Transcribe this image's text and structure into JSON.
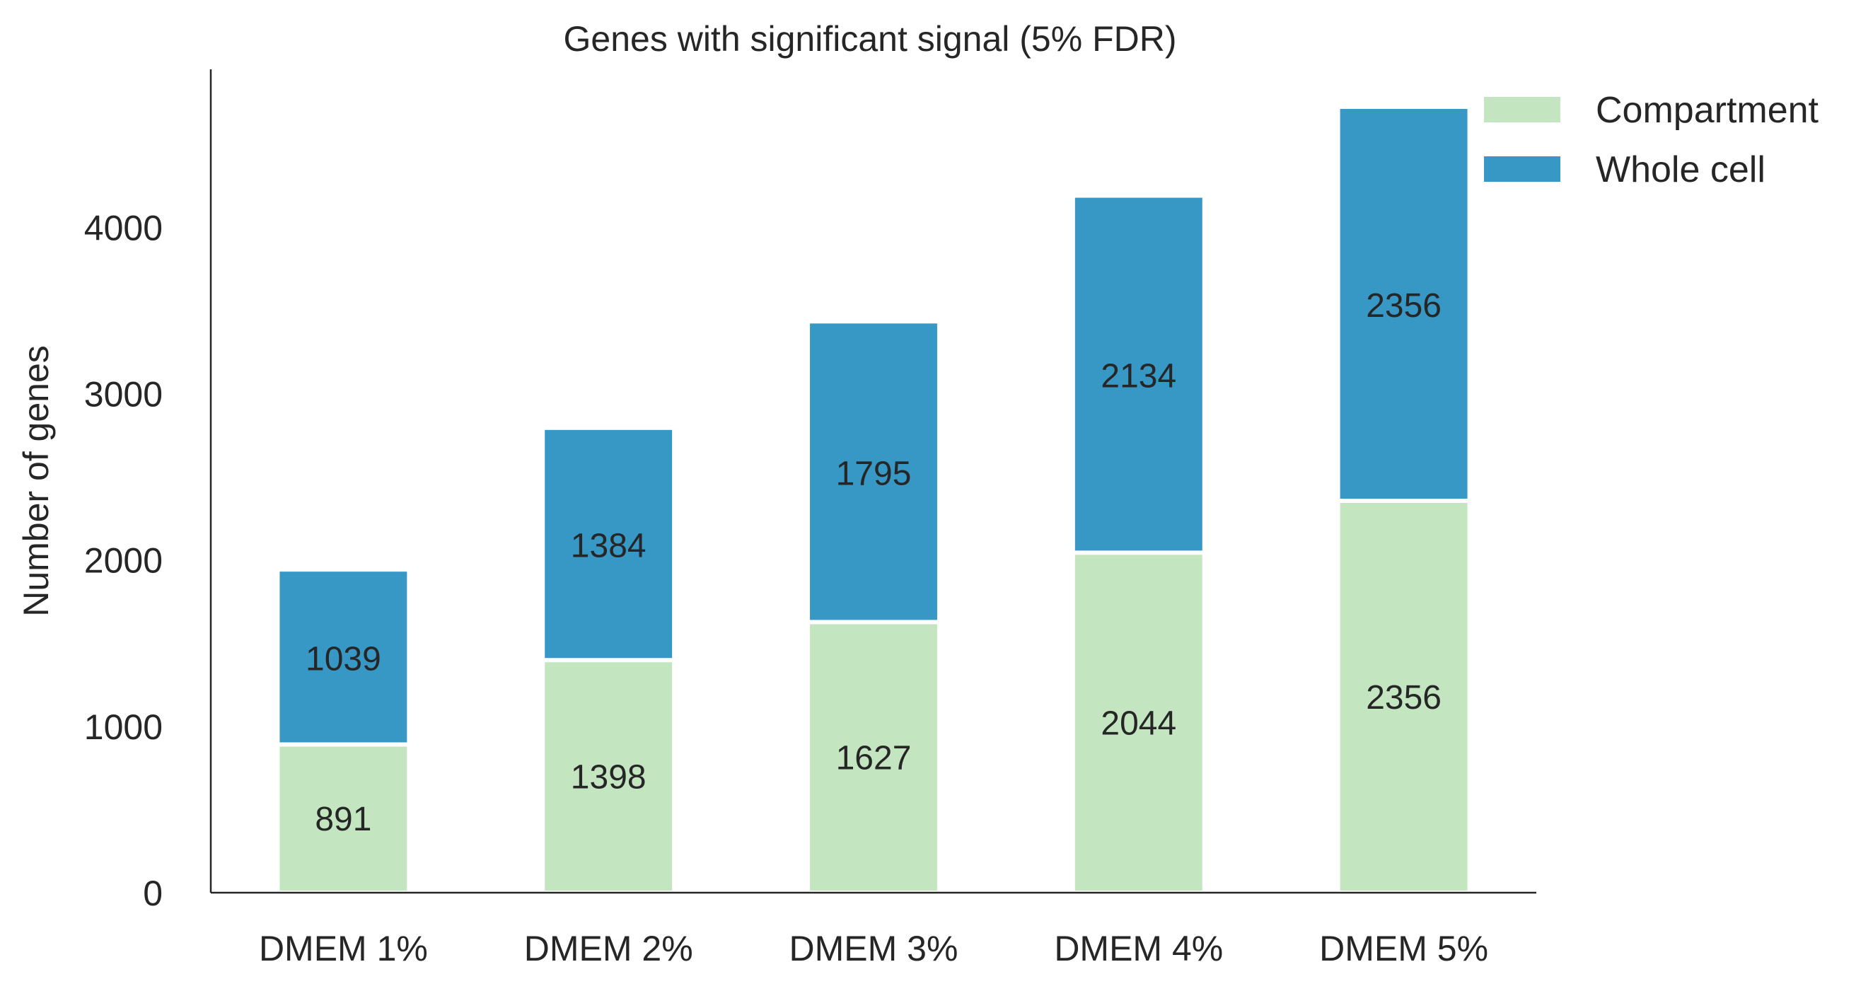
{
  "chart_data": {
    "type": "bar",
    "stacked": true,
    "title": "Genes with significant signal (5% FDR)",
    "xlabel": "",
    "ylabel": "Number of genes",
    "categories": [
      "DMEM 1%",
      "DMEM 2%",
      "DMEM 3%",
      "DMEM 4%",
      "DMEM 5%"
    ],
    "series": [
      {
        "name": "Compartment",
        "color": "#c3e6c1",
        "values": [
          891,
          1398,
          1627,
          2044,
          2356
        ],
        "labels": [
          "891",
          "1398",
          "1627",
          "2044",
          "2356"
        ]
      },
      {
        "name": "Whole cell",
        "color": "#3797c5",
        "values": [
          1039,
          1384,
          1795,
          2134,
          2356
        ],
        "labels": [
          "1039",
          "1384",
          "1795",
          "2134",
          "2356"
        ]
      }
    ],
    "ylim": [
      0,
      4950
    ],
    "yticks": [
      0,
      1000,
      2000,
      3000,
      4000
    ],
    "grid": false,
    "legend_position": "top-right"
  }
}
